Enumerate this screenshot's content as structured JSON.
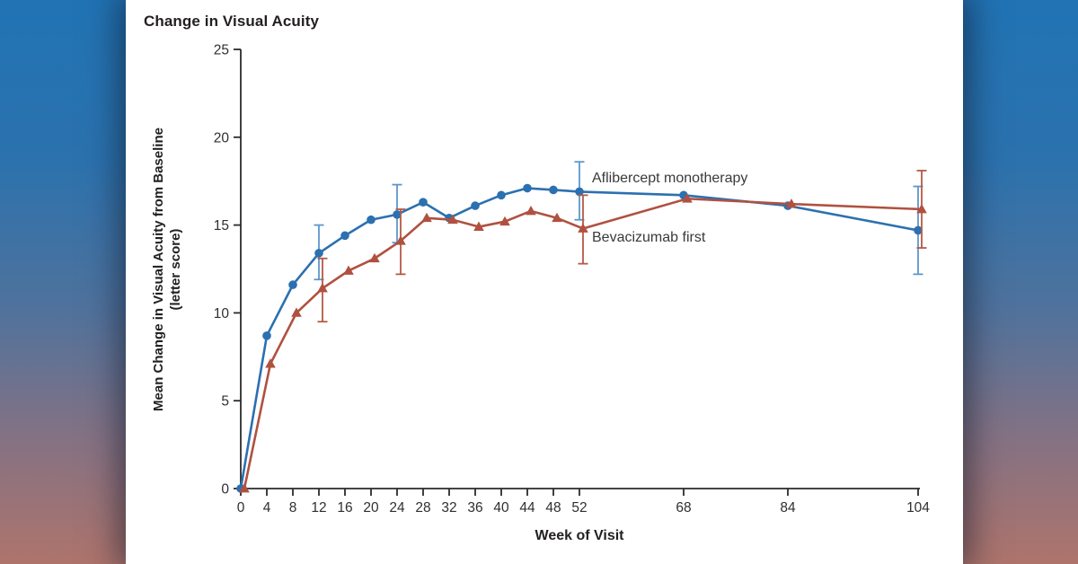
{
  "figure": {
    "card_background": "#ffffff",
    "background_gradient": [
      "#2173b4",
      "#50729c",
      "#857283",
      "#ae746c"
    ]
  },
  "chart_data": {
    "type": "line",
    "title": "Change in Visual Acuity",
    "xlabel": "Week of Visit",
    "ylabel": "Mean Change in Visual Acuity from Baseline (letter score)",
    "ylabel_lines": [
      "Mean Change in Visual Acuity from Baseline",
      "(letter score)"
    ],
    "x": [
      0,
      4,
      8,
      12,
      16,
      20,
      24,
      28,
      32,
      36,
      40,
      44,
      48,
      52,
      68,
      84,
      104
    ],
    "xticks": [
      0,
      4,
      8,
      12,
      16,
      20,
      24,
      28,
      32,
      36,
      40,
      44,
      48,
      52,
      68,
      84,
      104
    ],
    "yticks": [
      0,
      5,
      10,
      15,
      20,
      25
    ],
    "xlim": [
      0,
      104
    ],
    "ylim": [
      0,
      25
    ],
    "grid": false,
    "legend_position": "inline annotations beside week-52 points",
    "series": [
      {
        "name": "Aflibercept monotherapy",
        "marker": "circle",
        "color": "#2c70b0",
        "error_color": "#5d97cc",
        "values": [
          0,
          8.7,
          11.6,
          13.4,
          14.4,
          15.3,
          15.6,
          16.3,
          15.4,
          16.1,
          16.7,
          17.1,
          17.0,
          16.9,
          16.7,
          16.1,
          14.7
        ],
        "error_bars": {
          "12": [
            11.9,
            15.0
          ],
          "24": [
            14.0,
            17.3
          ],
          "52": [
            15.3,
            18.6
          ],
          "104": [
            12.2,
            17.2
          ]
        }
      },
      {
        "name": "Bevacizumab first",
        "marker": "triangle",
        "color": "#b05140",
        "error_color": "#b45a44",
        "values": [
          0,
          7.1,
          10.0,
          11.4,
          12.4,
          13.1,
          14.1,
          15.4,
          15.3,
          14.9,
          15.2,
          15.8,
          15.4,
          14.8,
          16.5,
          16.2,
          15.9
        ],
        "error_bars": {
          "12": [
            9.5,
            13.1
          ],
          "24": [
            12.2,
            15.9
          ],
          "52": [
            12.8,
            16.7
          ],
          "104": [
            13.7,
            18.1
          ]
        }
      }
    ],
    "annotations": [
      {
        "text": "Aflibercept monotherapy",
        "anchor_week": 54,
        "anchor_value": 17.6
      },
      {
        "text": "Bevacizumab first",
        "anchor_week": 54,
        "anchor_value": 14.1
      }
    ]
  }
}
